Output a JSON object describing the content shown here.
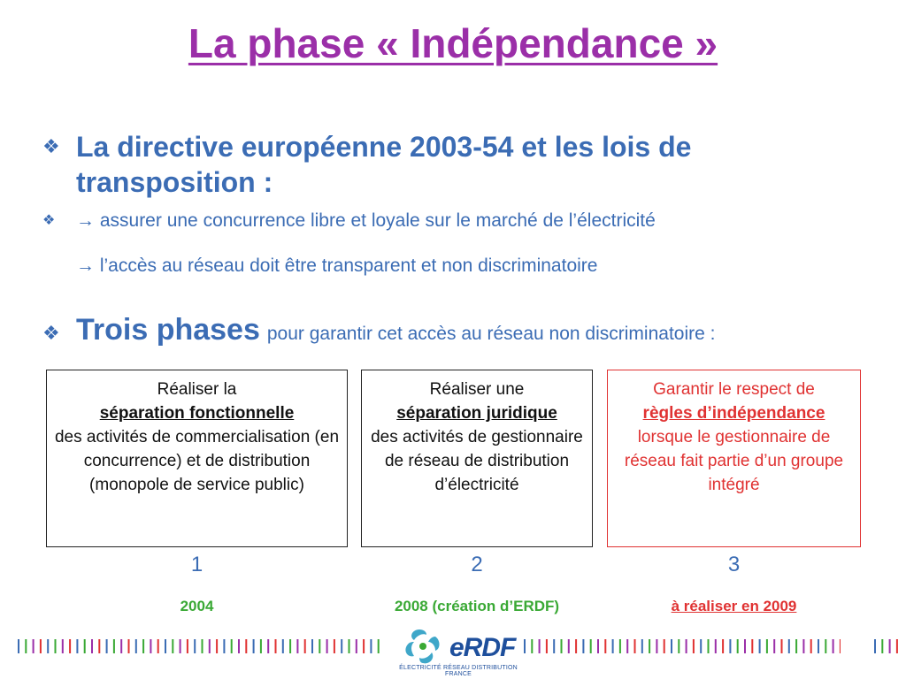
{
  "title": "La phase « Indépendance »",
  "bullets": {
    "main": "La directive européenne 2003-54 et les lois de transposition :",
    "sub1": "→ assurer une concurrence libre et loyale sur le marché de l’électricité",
    "sub2": "→ l’accès au réseau doit être transparent et non discriminatoire",
    "phases_strong": "Trois phases",
    "phases_rest": "pour garantir cet accès au réseau non discriminatoire :"
  },
  "boxes": [
    {
      "line1": "Réaliser la",
      "emph": "séparation fonctionnelle",
      "rest": "des activités de commercialisation (en concurrence) et de distribution (monopole de service public)",
      "number": "1",
      "year": "2004"
    },
    {
      "line1": "Réaliser une",
      "emph": "séparation juridique",
      "rest": "des activités de gestionnaire de réseau de distribution d’électricité",
      "number": "2",
      "year": "2008 (création d’ERDF)"
    },
    {
      "line1": "Garantir le respect de",
      "emph": "règles d’indépendance",
      "rest": "lorsque le gestionnaire de réseau fait partie d’un groupe intégré",
      "number": "3",
      "year": "à réaliser en 2009"
    }
  ],
  "logo": {
    "word": "eRDF",
    "subtitle": "ÉLECTRICITÉ RÉSEAU DISTRIBUTION FRANCE"
  },
  "colors": {
    "title": "#9b2fa8",
    "text_blue": "#3b6cb4",
    "green": "#3aa935",
    "red": "#e03232",
    "stripe_colors": [
      "#3b6cb4",
      "#3aa935",
      "#9b2fa8",
      "#e03232"
    ]
  }
}
